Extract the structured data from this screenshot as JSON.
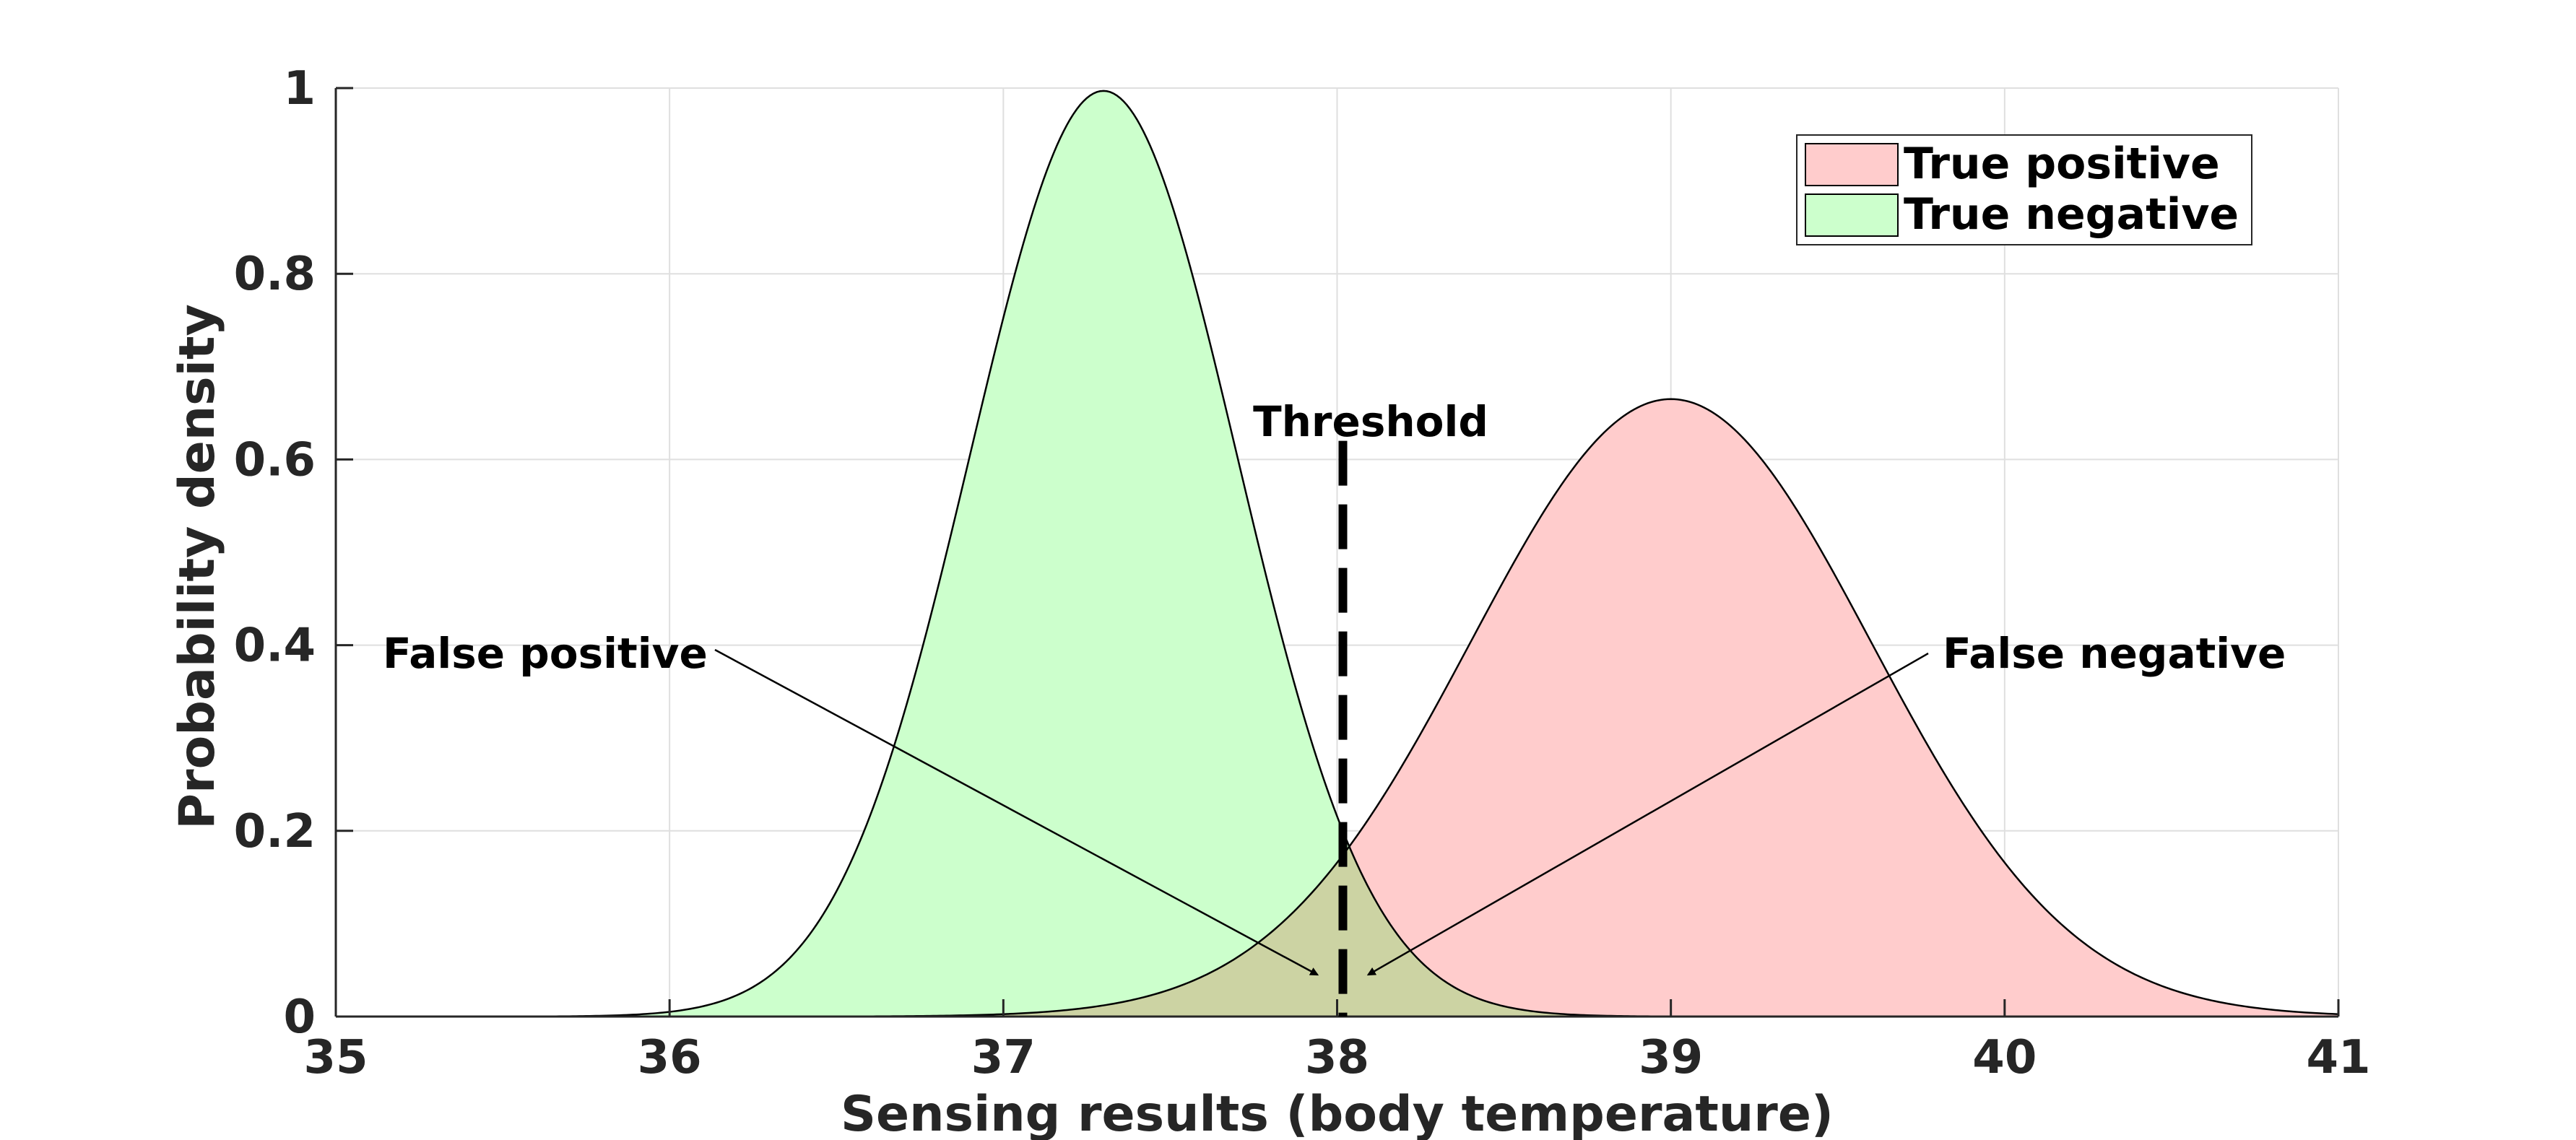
{
  "chart_data": {
    "type": "area",
    "title": "",
    "xlabel": "Sensing results (body temperature)",
    "ylabel": "Probability density",
    "xlim": [
      35,
      41
    ],
    "ylim": [
      0,
      1
    ],
    "xticks": [
      35,
      36,
      37,
      38,
      39,
      40,
      41
    ],
    "xtick_labels": [
      "35",
      "36",
      "37",
      "38",
      "39",
      "40",
      "41"
    ],
    "yticks": [
      0,
      0.2,
      0.4,
      0.6,
      0.8,
      1
    ],
    "ytick_labels": [
      "0",
      "0.2",
      "0.4",
      "0.6",
      "0.8",
      "1"
    ],
    "grid": true,
    "legend_position": "top-right",
    "series": [
      {
        "name": "True positive",
        "distribution": "normal",
        "mean": 39.0,
        "std": 0.6,
        "peak": 0.665,
        "color": "#ffcccc"
      },
      {
        "name": "True negative",
        "distribution": "normal",
        "mean": 37.3,
        "std": 0.4,
        "peak": 0.997,
        "color": "#ccffcc"
      }
    ],
    "overlap_color": "#ccd3a3",
    "threshold": {
      "x": 38.0,
      "label": "Threshold"
    },
    "annotations": [
      {
        "label": "False positive",
        "points_to_x": 37.95,
        "points_to_y": 0.045
      },
      {
        "label": "False negative",
        "points_to_x": 38.08,
        "points_to_y": 0.045
      }
    ]
  }
}
